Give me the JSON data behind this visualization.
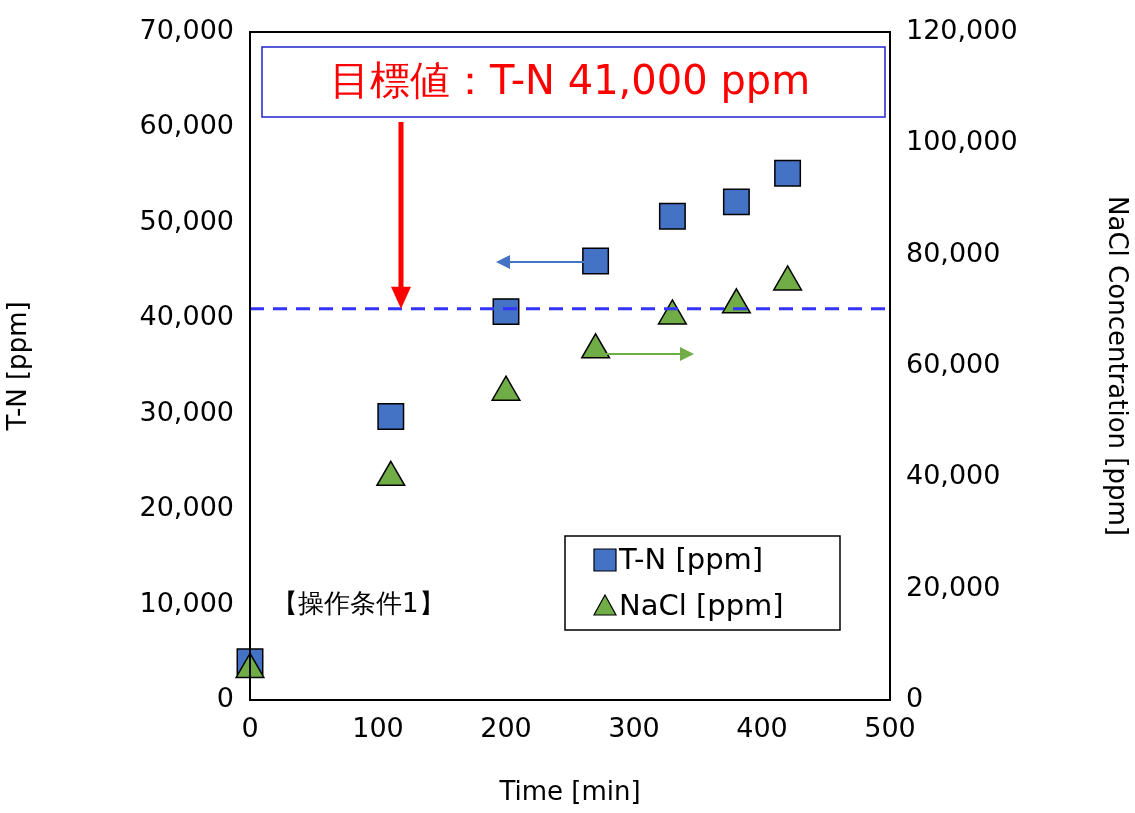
{
  "chart_data": {
    "type": "scatter",
    "xlabel": "Time [min]",
    "ylabel": "T-N [ppm]",
    "y2label": "NaCl Concentration [ppm]",
    "x": [
      0,
      110,
      200,
      270,
      330,
      380,
      420
    ],
    "series": [
      {
        "name": "T-N [ppm]",
        "color": "#4472c4",
        "marker": "square",
        "values": [
          4000,
          29700,
          40700,
          46000,
          50700,
          52200,
          55200
        ]
      },
      {
        "name": "NaCl [ppm]",
        "color": "#70ad47",
        "marker": "triangle",
        "axis": "y2",
        "values": [
          5500,
          40000,
          55300,
          62900,
          69000,
          71000,
          75100
        ]
      }
    ],
    "xlim": [
      0,
      500
    ],
    "xticks": [
      0,
      100,
      200,
      300,
      400,
      500
    ],
    "ylim": [
      0,
      70000
    ],
    "yticks": [
      {
        "value": 0,
        "label": "0"
      },
      {
        "value": 10000,
        "label": "10,000"
      },
      {
        "value": 20000,
        "label": "20,000"
      },
      {
        "value": 30000,
        "label": "30,000"
      },
      {
        "value": 40000,
        "label": "40,000"
      },
      {
        "value": 50000,
        "label": "50,000"
      },
      {
        "value": 60000,
        "label": "60,000"
      },
      {
        "value": 70000,
        "label": "70,000"
      }
    ],
    "y2lim": [
      0,
      120000
    ],
    "y2ticks": [
      {
        "value": 0,
        "label": "0"
      },
      {
        "value": 20000,
        "label": "20,000"
      },
      {
        "value": 40000,
        "label": "40,000"
      },
      {
        "value": 60000,
        "label": "60,000"
      },
      {
        "value": 80000,
        "label": "80,000"
      },
      {
        "value": 100000,
        "label": "100,000"
      },
      {
        "value": 120000,
        "label": "120,000"
      }
    ],
    "ref_lines": [
      {
        "axis": "y",
        "value": 41000,
        "color": "#3333ff",
        "line_style": "dashed"
      }
    ],
    "annotations": [
      "目標値：T-N 41,000 ppm",
      "【操作条件1】"
    ],
    "grid": false,
    "legend": "bottom right"
  }
}
